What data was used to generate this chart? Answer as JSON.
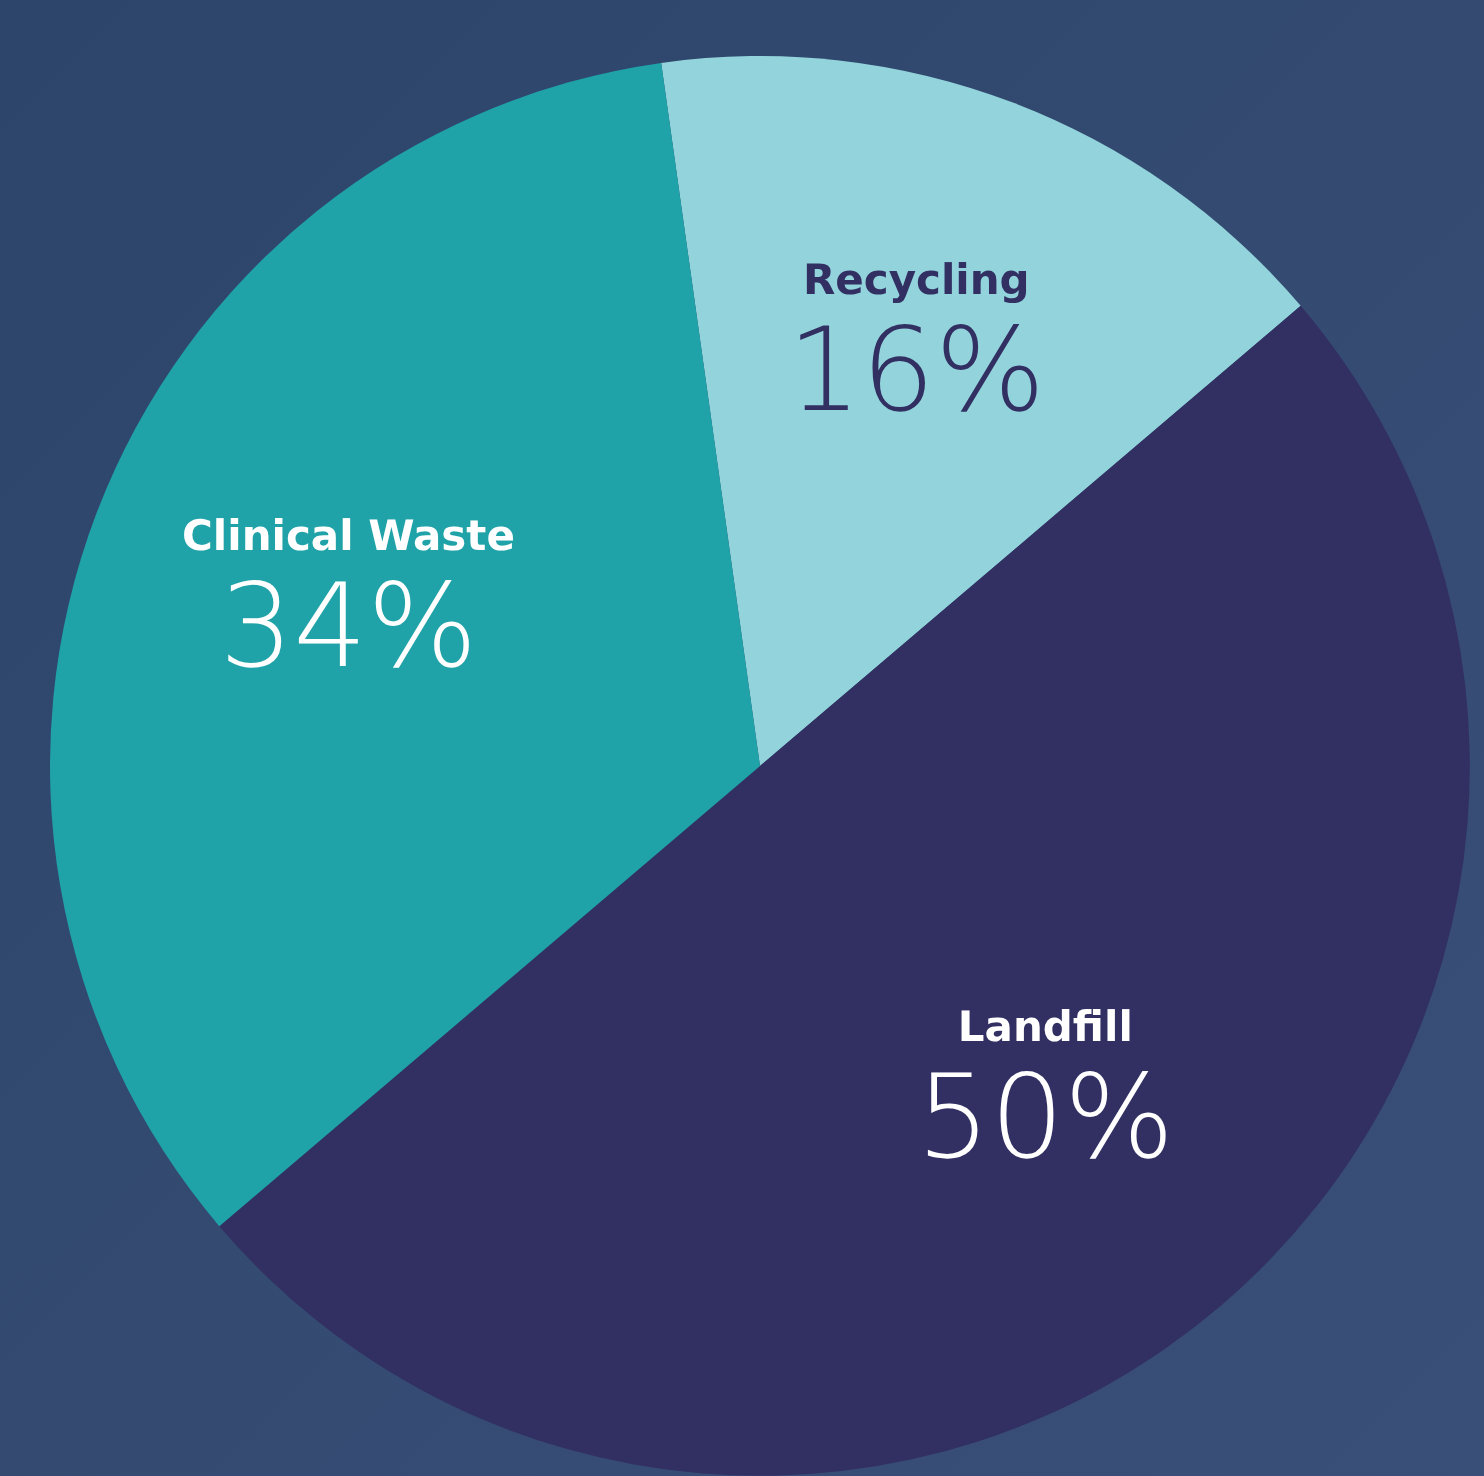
{
  "chart_data": {
    "type": "pie",
    "categories": [
      "Recycling",
      "Landfill",
      "Clinical Waste"
    ],
    "values": [
      16,
      50,
      34
    ],
    "colors": [
      "#93d4dc",
      "#323063",
      "#1fa3a8"
    ],
    "value_labels": [
      "16%",
      "50%",
      "34%"
    ]
  }
}
